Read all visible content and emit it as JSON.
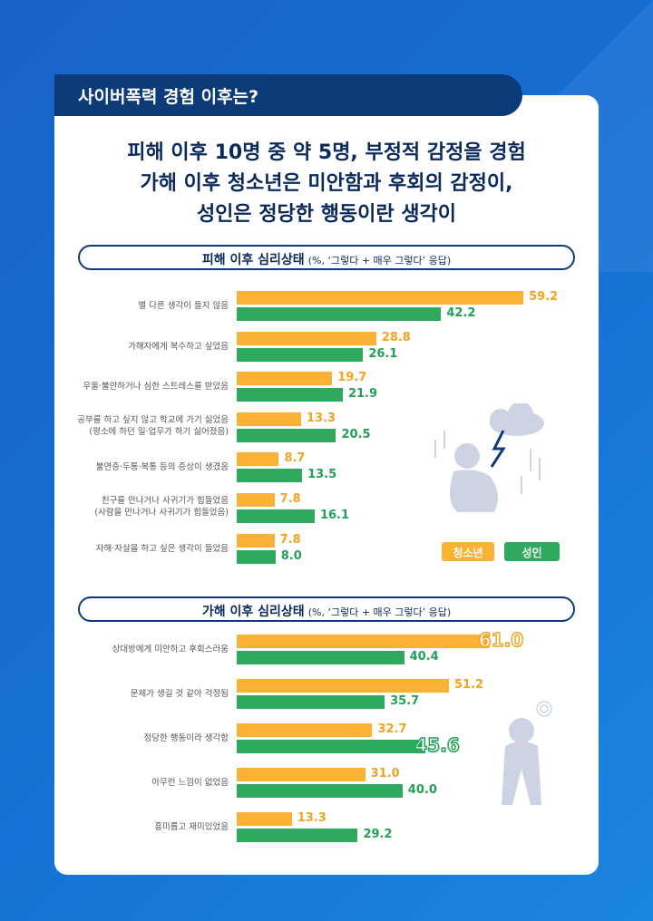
{
  "header": {
    "tab_title": "사이버폭력 경험 이후는?",
    "headline": [
      "피해 이후 10명 중 약 5명, 부정적 감정을 경험",
      "가해 이후 청소년은 미안함과 후회의 감정이,",
      "성인은 정당한 행동이란 생각이"
    ]
  },
  "legend": {
    "youth": "청소년",
    "adult": "성인"
  },
  "colors": {
    "youth": "#f9b233",
    "adult": "#2eaa5e",
    "youth_text": "#f2a420",
    "adult_text": "#22a055",
    "navy": "#0d3b7a"
  },
  "chart_data": [
    {
      "type": "bar",
      "orientation": "horizontal",
      "title": "피해 이후 심리상태",
      "subtitle": "(%, ‘그렇다 + 매우 그렇다’ 응답)",
      "categories": [
        [
          "별 다른 생각이 들지 않음"
        ],
        [
          "가해자에게 복수하고 싶었음"
        ],
        [
          "우울·불안하거나 심한 스트레스를 받았음"
        ],
        [
          "공부를 하고 싶지 않고 학교에 가기 싫었음",
          "(평소에 하던 일·업무가 하기 싫어졌음)"
        ],
        [
          "불면증·두통·복통 등의 증상이 생겼음"
        ],
        [
          "친구를 만나거나 사귀기가 힘들었음",
          "(사람을 만나거나 사귀기가 힘들었음)"
        ],
        [
          "자해·자살을 하고 싶은 생각이 들었음"
        ]
      ],
      "series": [
        {
          "name": "청소년",
          "values": [
            59.2,
            28.8,
            19.7,
            13.3,
            8.7,
            7.8,
            7.8
          ]
        },
        {
          "name": "성인",
          "values": [
            42.2,
            26.1,
            21.9,
            20.5,
            13.5,
            16.1,
            8.0
          ]
        }
      ],
      "legend_position": "bottom-right"
    },
    {
      "type": "bar",
      "orientation": "horizontal",
      "title": "가해 이후 심리상태",
      "subtitle": "(%, ‘그렇다 + 매우 그렇다’ 응답)",
      "categories": [
        [
          "상대방에게 미안하고 후회스러움"
        ],
        [
          "문제가 생길 것 같아 걱정됨"
        ],
        [
          "정당한 행동이라 생각함"
        ],
        [
          "아무런 느낌이 없었음"
        ],
        [
          "흥미롭고 재미있었음"
        ]
      ],
      "series": [
        {
          "name": "청소년",
          "values": [
            61.0,
            51.2,
            32.7,
            31.0,
            13.3
          ]
        },
        {
          "name": "성인",
          "values": [
            40.4,
            35.7,
            45.6,
            40.0,
            29.2
          ]
        }
      ],
      "highlight": [
        "청소년:61.0",
        "성인:45.6"
      ]
    }
  ]
}
